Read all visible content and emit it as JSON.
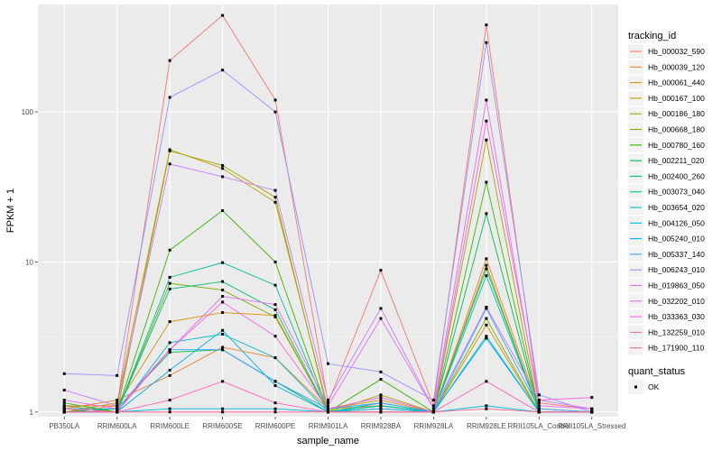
{
  "chart_data": {
    "type": "line",
    "xlabel": "sample_name",
    "ylabel": "FPKM + 1",
    "y_scale": "log10",
    "ylim": [
      0.93,
      520
    ],
    "yticks": [
      1,
      10,
      100
    ],
    "ytick_labels": [
      "1",
      "10",
      "100"
    ],
    "categories": [
      "PB350LA",
      "RRIM600LA",
      "RRIM600LE",
      "RRIM600SE",
      "RRIM600PE",
      "RRIM901LA",
      "RRIM928BA",
      "RRIM928LA",
      "RRIM928LE",
      "RRII105LA_Control",
      "RRII105LA_Stressed"
    ],
    "grid": true,
    "background": "#ebebeb",
    "legend": {
      "title": "tracking_id",
      "placement": "right",
      "items": [
        "Hb_000032_590",
        "Hb_000039_120",
        "Hb_000061_440",
        "Hb_000167_100",
        "Hb_000186_180",
        "Hb_000668_180",
        "Hb_000780_160",
        "Hb_002211_020",
        "Hb_002400_260",
        "Hb_003073_040",
        "Hb_003654_020",
        "Hb_004126_050",
        "Hb_005240_010",
        "Hb_005337_140",
        "Hb_006243_010",
        "Hb_019863_050",
        "Hb_032202_010",
        "Hb_033363_030",
        "Hb_132259_010",
        "Hb_171900_110"
      ],
      "colors": [
        "#F8766D",
        "#EA8331",
        "#D89000",
        "#C09B00",
        "#A3A500",
        "#7CAE00",
        "#39B600",
        "#00BB4E",
        "#00BF7D",
        "#00C1A3",
        "#00BFC4",
        "#00BAE0",
        "#00B0F6",
        "#35A2FF",
        "#9590FF",
        "#C77CFF",
        "#E76BF3",
        "#FA62DB",
        "#FF62BC",
        "#FF6C91"
      ]
    },
    "shape_legend": {
      "title": "quant_status",
      "items": [
        "OK"
      ]
    },
    "series": [
      {
        "name": "Hb_000032_590",
        "values": [
          1.1,
          1.1,
          220,
          440,
          120,
          1.15,
          8.8,
          1.1,
          380,
          1.15,
          1.05
        ]
      },
      {
        "name": "Hb_000039_120",
        "values": [
          1.05,
          1.2,
          1.75,
          2.7,
          2.3,
          1.05,
          1.1,
          1.0,
          10.5,
          1.05,
          1.0
        ]
      },
      {
        "name": "Hb_000061_440",
        "values": [
          1.0,
          1.1,
          4.0,
          4.6,
          4.4,
          1.0,
          1.05,
          1.0,
          3.8,
          1.0,
          1.0
        ]
      },
      {
        "name": "Hb_000167_100",
        "values": [
          1.0,
          1.15,
          56,
          42,
          25,
          1.05,
          1.2,
          1.0,
          9.5,
          1.0,
          1.0
        ]
      },
      {
        "name": "Hb_000186_180",
        "values": [
          1.05,
          1.0,
          55,
          44,
          27,
          1.0,
          1.3,
          1.0,
          65,
          1.0,
          1.0
        ]
      },
      {
        "name": "Hb_000668_180",
        "values": [
          1.1,
          1.0,
          7.2,
          6.5,
          4.3,
          1.0,
          1.15,
          1.0,
          4.2,
          1.0,
          1.0
        ]
      },
      {
        "name": "Hb_000780_160",
        "values": [
          1.15,
          1.0,
          12,
          22,
          10,
          1.0,
          1.65,
          1.0,
          34,
          1.0,
          1.0
        ]
      },
      {
        "name": "Hb_002211_020",
        "values": [
          1.0,
          1.05,
          2.5,
          2.6,
          1.6,
          1.0,
          1.1,
          1.0,
          21,
          1.0,
          1.0
        ]
      },
      {
        "name": "Hb_002400_260",
        "values": [
          1.0,
          1.0,
          6.6,
          7.4,
          4.8,
          1.0,
          1.1,
          1.0,
          9.0,
          1.0,
          1.0
        ]
      },
      {
        "name": "Hb_003073_040",
        "values": [
          1.0,
          1.0,
          7.9,
          9.9,
          7.0,
          1.0,
          1.1,
          1.0,
          8.1,
          1.0,
          1.0
        ]
      },
      {
        "name": "Hb_003654_020",
        "values": [
          1.0,
          1.0,
          2.9,
          3.3,
          2.3,
          1.0,
          1.15,
          1.0,
          3.2,
          1.0,
          1.0
        ]
      },
      {
        "name": "Hb_004126_050",
        "values": [
          1.0,
          1.0,
          1.05,
          1.05,
          1.05,
          1.0,
          1.0,
          1.0,
          1.1,
          1.0,
          1.0
        ]
      },
      {
        "name": "Hb_005240_010",
        "values": [
          1.0,
          1.0,
          1.9,
          3.5,
          1.5,
          1.0,
          1.05,
          1.0,
          3.1,
          1.0,
          1.0
        ]
      },
      {
        "name": "Hb_005337_140",
        "values": [
          1.05,
          1.05,
          2.6,
          2.6,
          1.6,
          1.05,
          1.15,
          1.0,
          4.9,
          1.05,
          1.0
        ]
      },
      {
        "name": "Hb_006243_010",
        "values": [
          1.8,
          1.75,
          125,
          190,
          100,
          2.1,
          1.85,
          1.2,
          290,
          1.3,
          1.0
        ]
      },
      {
        "name": "Hb_019863_050",
        "values": [
          1.4,
          1.1,
          45,
          37,
          30,
          1.2,
          4.9,
          1.05,
          5.0,
          1.2,
          1.05
        ]
      },
      {
        "name": "Hb_032202_010",
        "values": [
          1.2,
          1.05,
          2.6,
          5.9,
          5.2,
          1.1,
          4.2,
          1.05,
          120,
          1.1,
          1.05
        ]
      },
      {
        "name": "Hb_033363_030",
        "values": [
          1.05,
          1.0,
          2.6,
          5.4,
          3.2,
          1.05,
          1.25,
          1.0,
          87,
          1.2,
          1.25
        ]
      },
      {
        "name": "Hb_132259_010",
        "values": [
          1.0,
          1.0,
          1.2,
          1.6,
          1.15,
          1.0,
          1.0,
          1.0,
          1.6,
          1.0,
          1.0
        ]
      },
      {
        "name": "Hb_171900_110",
        "values": [
          1.0,
          1.0,
          1.0,
          1.0,
          1.0,
          1.0,
          1.0,
          1.0,
          1.05,
          1.0,
          1.0
        ]
      }
    ]
  }
}
